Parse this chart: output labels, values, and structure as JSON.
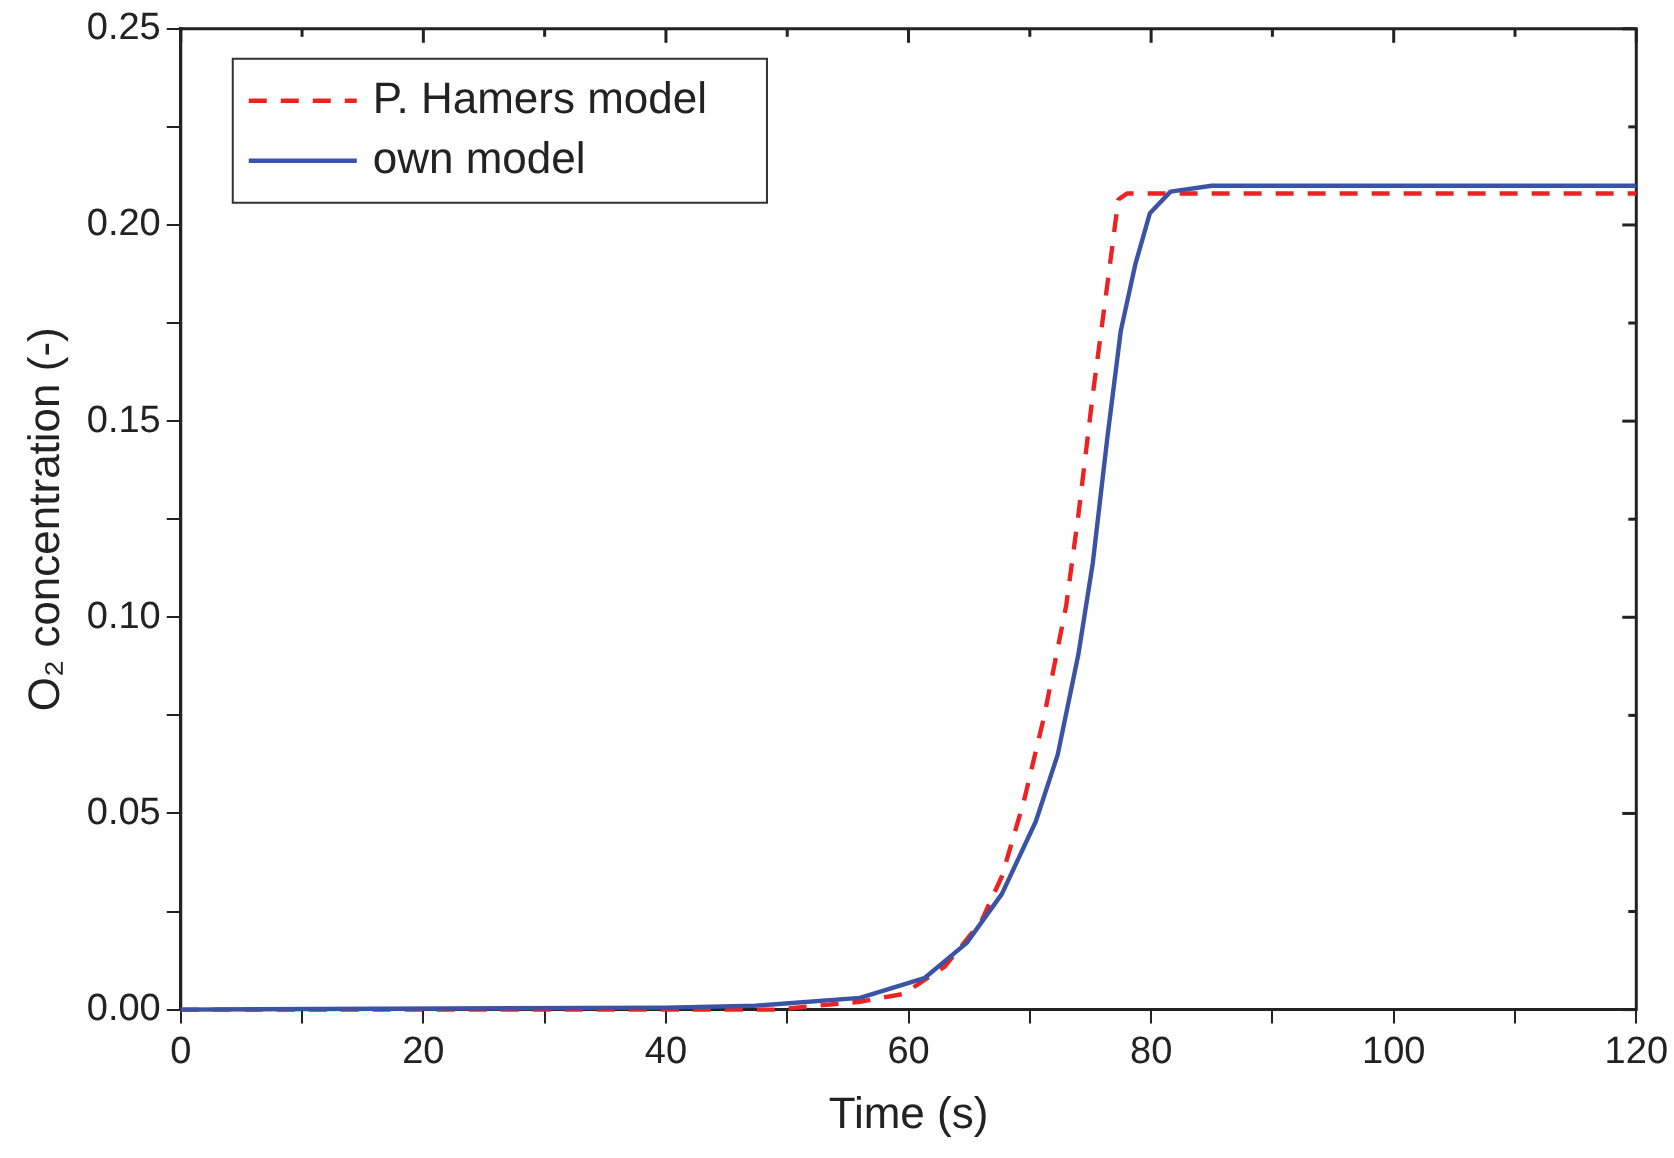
{
  "chart_data": {
    "type": "line",
    "xlabel": "Time (s)",
    "ylabel": "O₂ concentration (-)",
    "xlim": [
      0,
      120
    ],
    "xticks": [
      0,
      {
        "value": 10,
        "label": null
      },
      20,
      {
        "value": 30,
        "label": null
      },
      40,
      {
        "value": 50,
        "label": null
      },
      60,
      {
        "value": 70,
        "label": null
      },
      80,
      {
        "value": 90,
        "label": null
      },
      100,
      {
        "value": 110,
        "label": null
      },
      120
    ],
    "ylim": [
      0,
      0.25
    ],
    "yticks": [
      {
        "value": 0,
        "label": "0.00"
      },
      {
        "value": 0.025,
        "label": null
      },
      {
        "value": 0.05,
        "label": "0.05"
      },
      {
        "value": 0.075,
        "label": null
      },
      {
        "value": 0.1,
        "label": "0.10"
      },
      {
        "value": 0.125,
        "label": null
      },
      {
        "value": 0.15,
        "label": "0.15"
      },
      {
        "value": 0.175,
        "label": null
      },
      {
        "value": 0.2,
        "label": "0.20"
      },
      {
        "value": 0.225,
        "label": null
      },
      {
        "value": 0.25,
        "label": "0.25"
      }
    ],
    "grid": false,
    "legend": "top left",
    "marker": "none",
    "series": [
      {
        "name": "P. Hamers model",
        "color": "#ee2222",
        "line_style": "dashed",
        "x": [
          0,
          40,
          49,
          56,
          59.6,
          63,
          66,
          67.7,
          69.5,
          71.2,
          73,
          74,
          75.2,
          76.4,
          77.3,
          78,
          120
        ],
        "values": [
          0,
          0,
          0,
          0.002,
          0.004,
          0.011,
          0.0225,
          0.034,
          0.053,
          0.075,
          0.103,
          0.126,
          0.157,
          0.185,
          0.2065,
          0.208,
          0.208
        ]
      },
      {
        "name": "own model",
        "color": "#3a53a4",
        "line_style": "solid",
        "x": [
          0,
          40,
          47.4,
          56,
          61.3,
          64.8,
          67.7,
          70.5,
          72.3,
          74,
          75.2,
          76.4,
          77.5,
          78.7,
          79.9,
          81.6,
          85,
          120
        ],
        "values": [
          0,
          0.0005,
          0.001,
          0.003,
          0.008,
          0.017,
          0.0295,
          0.048,
          0.065,
          0.0905,
          0.114,
          0.146,
          0.173,
          0.19,
          0.203,
          0.2085,
          0.21,
          0.21
        ]
      }
    ]
  }
}
